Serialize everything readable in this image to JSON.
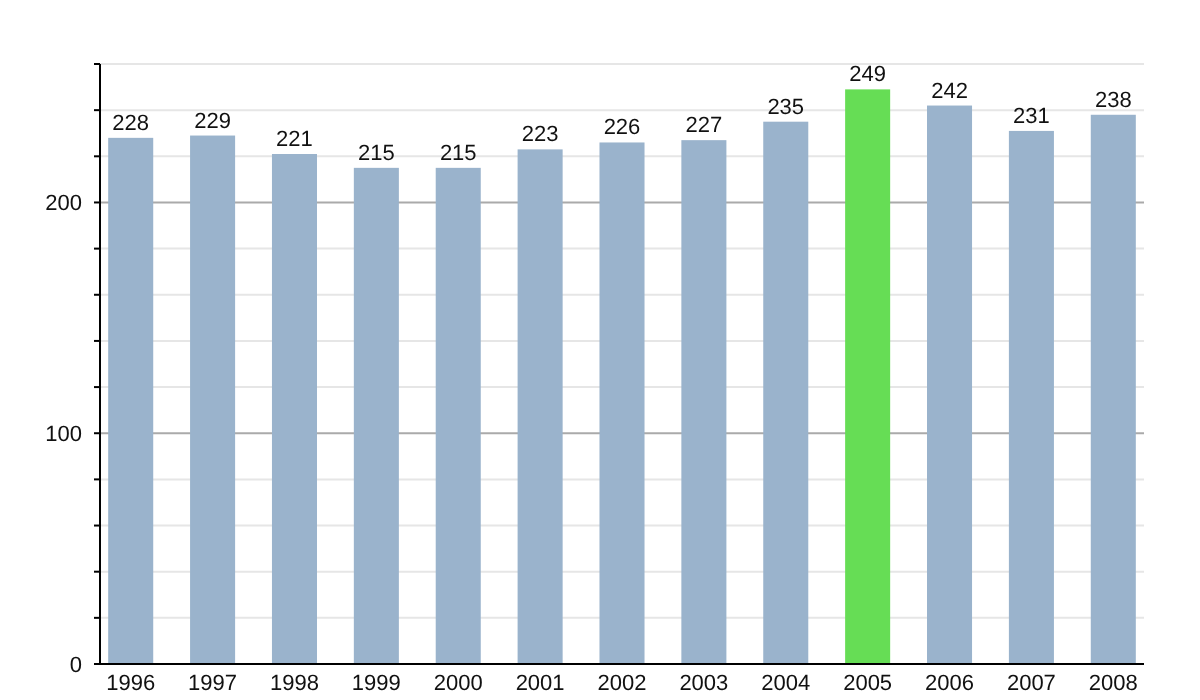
{
  "chart_data": {
    "type": "bar",
    "categories": [
      "1996",
      "1997",
      "1998",
      "1999",
      "2000",
      "2001",
      "2002",
      "2003",
      "2004",
      "2005",
      "2006",
      "2007",
      "2008"
    ],
    "values": [
      228,
      229,
      221,
      215,
      215,
      223,
      226,
      227,
      235,
      249,
      242,
      231,
      238
    ],
    "colors": [
      "#9ab3cc",
      "#9ab3cc",
      "#9ab3cc",
      "#9ab3cc",
      "#9ab3cc",
      "#9ab3cc",
      "#9ab3cc",
      "#9ab3cc",
      "#9ab3cc",
      "#66dd55",
      "#9ab3cc",
      "#9ab3cc",
      "#9ab3cc"
    ],
    "ylim": [
      0,
      260
    ],
    "yticks": [
      0,
      {
        "value": 20,
        "label": null
      },
      {
        "value": 40,
        "label": null
      },
      {
        "value": 60,
        "label": null
      },
      {
        "value": 80,
        "label": null
      },
      100,
      {
        "value": 120,
        "label": null
      },
      {
        "value": 140,
        "label": null
      },
      {
        "value": 160,
        "label": null
      },
      {
        "value": 180,
        "label": null
      },
      200,
      {
        "value": 220,
        "label": null
      },
      {
        "value": 240,
        "label": null
      },
      {
        "value": 260,
        "label": null
      }
    ],
    "grid": true,
    "data_labels": true
  }
}
